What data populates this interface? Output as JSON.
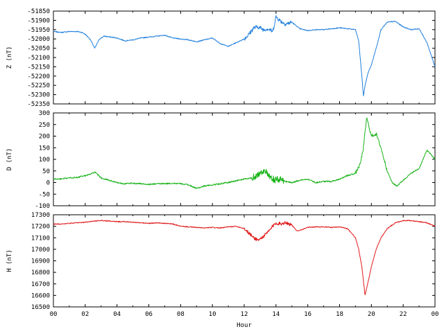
{
  "chart_data": [
    {
      "type": "line",
      "ylabel": "Z (nT)",
      "ylim": [
        -52350,
        -51850
      ],
      "yticks": [
        -51850,
        -51900,
        -51950,
        -52000,
        -52050,
        -52100,
        -52150,
        -52200,
        -52250,
        -52300,
        -52350
      ],
      "color": "#1f7fdd",
      "series": [
        {
          "x": [
            0,
            0.5,
            1,
            1.5,
            1.8,
            2,
            2.3,
            2.6,
            2.9,
            3.2,
            3.6,
            4,
            4.5,
            5,
            5.5,
            6,
            6.5,
            7,
            7.5,
            8,
            8.5,
            9,
            9.5,
            10,
            10.5,
            11,
            11.5,
            12,
            12.3,
            12.6,
            12.9,
            13.2,
            13.5,
            13.8,
            14,
            14.3,
            14.6,
            15,
            15.5,
            16,
            16.5,
            17,
            17.5,
            18,
            18.5,
            19,
            19.2,
            19.4,
            19.5,
            19.6,
            19.8,
            20,
            20.3,
            20.6,
            21,
            21.5,
            22,
            22.5,
            23,
            23.5,
            24
          ],
          "y": [
            -51960,
            -51965,
            -51960,
            -51960,
            -51965,
            -51975,
            -52000,
            -52050,
            -52000,
            -51985,
            -51990,
            -51995,
            -52010,
            -52005,
            -51995,
            -51990,
            -51985,
            -51980,
            -51995,
            -52000,
            -52005,
            -52015,
            -52005,
            -51995,
            -52025,
            -52040,
            -52020,
            -52000,
            -51975,
            -51940,
            -51935,
            -51950,
            -51945,
            -51960,
            -51880,
            -51905,
            -51920,
            -51910,
            -51945,
            -51955,
            -51950,
            -51950,
            -51945,
            -51940,
            -51945,
            -51950,
            -52010,
            -52200,
            -52310,
            -52250,
            -52180,
            -52140,
            -52050,
            -51950,
            -51910,
            -51905,
            -51935,
            -51950,
            -51945,
            -52020,
            -52150
          ]
        }
      ]
    },
    {
      "type": "line",
      "ylabel": "D (nT)",
      "ylim": [
        -100,
        300
      ],
      "yticks": [
        300,
        250,
        200,
        150,
        100,
        50,
        0,
        -50,
        -100
      ],
      "color": "#19b319",
      "series": [
        {
          "x": [
            0,
            0.5,
            1,
            1.5,
            2,
            2.3,
            2.6,
            3,
            3.5,
            4,
            4.5,
            5,
            5.5,
            6,
            6.5,
            7,
            7.5,
            8,
            8.5,
            9,
            9.5,
            10,
            10.5,
            11,
            11.5,
            12,
            12.5,
            13,
            13.3,
            13.6,
            14,
            14.3,
            14.6,
            15,
            15.5,
            16,
            16.5,
            17,
            17.5,
            18,
            18.5,
            19,
            19.3,
            19.5,
            19.7,
            20,
            20.3,
            20.6,
            21,
            21.3,
            21.6,
            22,
            22.5,
            23,
            23.5,
            24
          ],
          "y": [
            15,
            15,
            20,
            22,
            30,
            35,
            45,
            20,
            10,
            0,
            -5,
            -3,
            -5,
            -8,
            -5,
            -5,
            -3,
            -5,
            -10,
            -25,
            -15,
            -10,
            -5,
            0,
            8,
            15,
            20,
            40,
            55,
            20,
            10,
            15,
            5,
            0,
            10,
            15,
            0,
            5,
            5,
            15,
            30,
            40,
            80,
            150,
            280,
            200,
            210,
            150,
            50,
            0,
            -15,
            10,
            40,
            60,
            140,
            100
          ]
        }
      ]
    },
    {
      "type": "line",
      "ylabel": "H (nT)",
      "xlabel": "Hour",
      "ylim": [
        16500,
        17300
      ],
      "yticks": [
        17300,
        17200,
        17100,
        17000,
        16900,
        16800,
        16700,
        16600,
        16500
      ],
      "xlim": [
        0,
        24
      ],
      "xticks": [
        "00",
        "02",
        "04",
        "06",
        "08",
        "10",
        "12",
        "14",
        "16",
        "18",
        "20",
        "22",
        "00"
      ],
      "color": "#e01818",
      "series": [
        {
          "x": [
            0,
            0.5,
            1,
            1.5,
            2,
            2.5,
            3,
            3.5,
            4,
            4.5,
            5,
            5.5,
            6,
            6.5,
            7,
            7.5,
            8,
            8.5,
            9,
            9.5,
            10,
            10.5,
            11,
            11.5,
            12,
            12.3,
            12.6,
            12.9,
            13.2,
            13.5,
            13.8,
            14,
            14.3,
            14.6,
            15,
            15.3,
            15.6,
            16,
            16.5,
            17,
            17.5,
            18,
            18.5,
            19,
            19.2,
            19.4,
            19.6,
            19.8,
            20,
            20.3,
            20.6,
            21,
            21.5,
            22,
            22.5,
            23,
            23.5,
            24
          ],
          "y": [
            17220,
            17220,
            17225,
            17230,
            17235,
            17245,
            17250,
            17245,
            17240,
            17240,
            17235,
            17230,
            17225,
            17230,
            17225,
            17220,
            17200,
            17195,
            17190,
            17185,
            17190,
            17185,
            17195,
            17200,
            17180,
            17140,
            17100,
            17080,
            17110,
            17150,
            17200,
            17230,
            17220,
            17235,
            17210,
            17160,
            17170,
            17190,
            17195,
            17195,
            17190,
            17195,
            17180,
            17100,
            17000,
            16850,
            16600,
            16720,
            16850,
            17000,
            17100,
            17180,
            17230,
            17250,
            17250,
            17240,
            17230,
            17200
          ]
        }
      ]
    }
  ]
}
